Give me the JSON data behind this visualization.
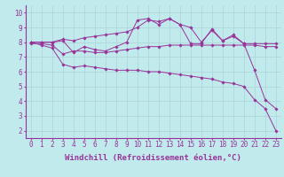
{
  "title": "",
  "xlabel": "Windchill (Refroidissement éolien,°C)",
  "ylabel": "",
  "bg_color": "#c0eaec",
  "line_color": "#993399",
  "grid_color": "#b0d8dc",
  "xlim": [
    -0.5,
    23.5
  ],
  "ylim": [
    1.5,
    10.5
  ],
  "xticks": [
    0,
    1,
    2,
    3,
    4,
    5,
    6,
    7,
    8,
    9,
    10,
    11,
    12,
    13,
    14,
    15,
    16,
    17,
    18,
    19,
    20,
    21,
    22,
    23
  ],
  "yticks": [
    2,
    3,
    4,
    5,
    6,
    7,
    8,
    9,
    10
  ],
  "line1_x": [
    0,
    1,
    2,
    3,
    4,
    5,
    6,
    7,
    8,
    9,
    10,
    11,
    12,
    13,
    14,
    15,
    16,
    17,
    18,
    19,
    20,
    21,
    22,
    23
  ],
  "line1_y": [
    8.0,
    8.0,
    8.0,
    8.2,
    8.1,
    8.3,
    8.4,
    8.5,
    8.6,
    8.7,
    9.0,
    9.5,
    9.4,
    9.6,
    9.2,
    9.0,
    8.0,
    8.8,
    8.1,
    8.5,
    7.9,
    7.9,
    7.9,
    7.9
  ],
  "line2_x": [
    0,
    1,
    2,
    3,
    4,
    5,
    6,
    7,
    8,
    9,
    10,
    11,
    12,
    13,
    14,
    15,
    16,
    17,
    18,
    19,
    20,
    21,
    22,
    23
  ],
  "line2_y": [
    8.0,
    8.0,
    8.0,
    8.1,
    7.3,
    7.7,
    7.5,
    7.4,
    7.7,
    8.0,
    9.5,
    9.6,
    9.2,
    9.6,
    9.2,
    7.9,
    7.9,
    8.9,
    8.1,
    8.4,
    7.9,
    6.1,
    4.1,
    3.5
  ],
  "line3_x": [
    0,
    1,
    2,
    3,
    4,
    5,
    6,
    7,
    8,
    9,
    10,
    11,
    12,
    13,
    14,
    15,
    16,
    17,
    18,
    19,
    20,
    21,
    22,
    23
  ],
  "line3_y": [
    7.9,
    7.9,
    7.8,
    7.2,
    7.4,
    7.4,
    7.3,
    7.3,
    7.4,
    7.5,
    7.6,
    7.7,
    7.7,
    7.8,
    7.8,
    7.8,
    7.8,
    7.8,
    7.8,
    7.8,
    7.8,
    7.8,
    7.7,
    7.7
  ],
  "line4_x": [
    0,
    1,
    2,
    3,
    4,
    5,
    6,
    7,
    8,
    9,
    10,
    11,
    12,
    13,
    14,
    15,
    16,
    17,
    18,
    19,
    20,
    21,
    22,
    23
  ],
  "line4_y": [
    8.0,
    7.8,
    7.6,
    6.5,
    6.3,
    6.4,
    6.3,
    6.2,
    6.1,
    6.1,
    6.1,
    6.0,
    6.0,
    5.9,
    5.8,
    5.7,
    5.6,
    5.5,
    5.3,
    5.2,
    5.0,
    4.1,
    3.5,
    2.0
  ],
  "marker": "D",
  "marker_size": 1.8,
  "linewidth": 0.7,
  "tick_fontsize": 5.5,
  "xlabel_fontsize": 6.5
}
